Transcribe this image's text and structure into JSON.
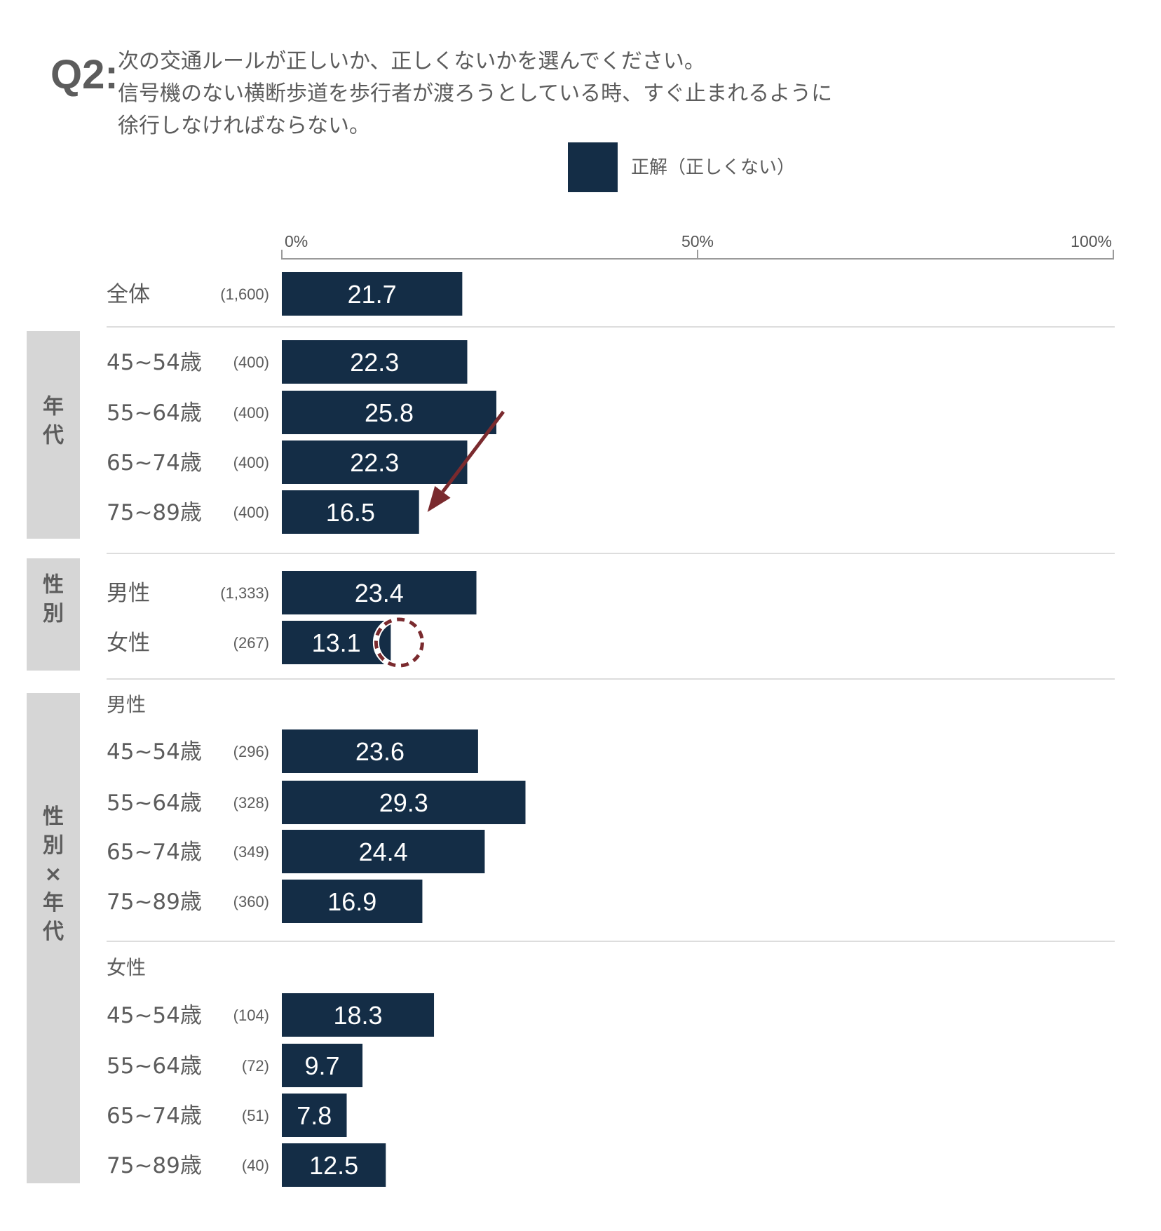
{
  "question": {
    "label": "Q2:",
    "lines": [
      "次の交通ルールが正しいか、正しくないかを選んでください。",
      "信号機のない横断歩道を歩行者が渡ろうとしている時、すぐ止まれるように",
      "徐行しなければならない。"
    ]
  },
  "legend": {
    "label": "正解（正しくない）",
    "color": "#142d46"
  },
  "colors": {
    "bar": "#142d46",
    "group_bg": "#d6d6d6",
    "arrow": "#7a2a2e",
    "axis": "#9a9a9a",
    "separator": "#dddddd"
  },
  "chart_data": {
    "type": "bar",
    "orientation": "horizontal",
    "xlim": [
      0,
      100
    ],
    "x_ticks": [
      "0%",
      "50%",
      "100%"
    ],
    "series": [
      {
        "name": "正解（正しくない）"
      }
    ],
    "groups": [
      {
        "title": "",
        "rows": [
          {
            "label": "全体",
            "n": "(1,600)",
            "value": 21.7
          }
        ]
      },
      {
        "title": "年代",
        "rows": [
          {
            "label": "45~54歳",
            "n": "(400)",
            "value": 22.3
          },
          {
            "label": "55~64歳",
            "n": "(400)",
            "value": 25.8
          },
          {
            "label": "65~74歳",
            "n": "(400)",
            "value": 22.3
          },
          {
            "label": "75~89歳",
            "n": "(400)",
            "value": 16.5
          }
        ]
      },
      {
        "title": "性別",
        "rows": [
          {
            "label": "男性",
            "n": "(1,333)",
            "value": 23.4
          },
          {
            "label": "女性",
            "n": "(267)",
            "value": 13.1
          }
        ]
      },
      {
        "title": "性別×年代",
        "subgroups": [
          {
            "title": "男性",
            "rows": [
              {
                "label": "45~54歳",
                "n": "(296)",
                "value": 23.6
              },
              {
                "label": "55~64歳",
                "n": "(328)",
                "value": 29.3
              },
              {
                "label": "65~74歳",
                "n": "(349)",
                "value": 24.4
              },
              {
                "label": "75~89歳",
                "n": "(360)",
                "value": 16.9
              }
            ]
          },
          {
            "title": "女性",
            "rows": [
              {
                "label": "45~54歳",
                "n": "(104)",
                "value": 18.3
              },
              {
                "label": "55~64歳",
                "n": "(72)",
                "value": 9.7
              },
              {
                "label": "65~74歳",
                "n": "(51)",
                "value": 7.8
              },
              {
                "label": "75~89歳",
                "n": "(40)",
                "value": 12.5
              }
            ]
          }
        ]
      }
    ],
    "annotations": [
      {
        "type": "arrow",
        "from_row": "年代/55~64歳",
        "to_row": "年代/75~89歳"
      },
      {
        "type": "circle",
        "row": "性別/女性"
      }
    ]
  }
}
